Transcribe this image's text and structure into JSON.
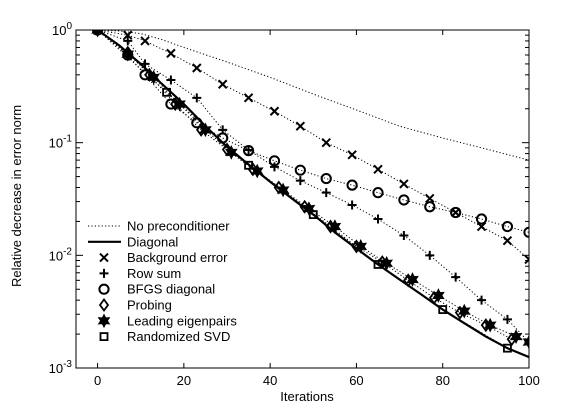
{
  "chart_data": {
    "type": "line",
    "title": "",
    "xlabel": "Iterations",
    "ylabel": "Relative decrease in error norm",
    "xlim": [
      -5,
      100
    ],
    "ylim": [
      0.001,
      1
    ],
    "yscale": "log",
    "grid": false,
    "legend_position": "bottom-left",
    "x_ticks": [
      0,
      20,
      40,
      60,
      80,
      100
    ],
    "x_tick_labels": [
      "0",
      "20",
      "40",
      "60",
      "80",
      "100"
    ],
    "y_ticks": [
      0.001,
      0.01,
      0.1,
      1
    ],
    "y_tick_labels": [
      {
        "base": "10",
        "exp": "-3"
      },
      {
        "base": "10",
        "exp": "-2"
      },
      {
        "base": "10",
        "exp": "-1"
      },
      {
        "base": "10",
        "exp": "0"
      }
    ],
    "series": [
      {
        "name": "No preconditioner",
        "style": "dotted",
        "marker": "none",
        "x": [
          0,
          5,
          10,
          15,
          20,
          30,
          40,
          50,
          60,
          70,
          80,
          90,
          100
        ],
        "y": [
          1.0,
          0.98,
          0.93,
          0.82,
          0.7,
          0.52,
          0.38,
          0.27,
          0.195,
          0.14,
          0.11,
          0.088,
          0.07
        ]
      },
      {
        "name": "Diagonal",
        "style": "solid-thick",
        "marker": "none",
        "x": [
          0,
          5,
          10,
          15,
          20,
          25,
          30,
          35,
          40,
          45,
          50,
          55,
          60,
          65,
          70,
          75,
          80,
          85,
          90,
          95,
          100
        ],
        "y": [
          1.0,
          0.73,
          0.5,
          0.33,
          0.22,
          0.14,
          0.092,
          0.064,
          0.045,
          0.032,
          0.023,
          0.016,
          0.0115,
          0.0083,
          0.0061,
          0.0045,
          0.0033,
          0.0025,
          0.0019,
          0.0015,
          0.00125
        ]
      },
      {
        "name": "Background error",
        "style": "dotted",
        "marker": "x",
        "x": [
          0,
          7,
          11,
          17,
          23,
          29,
          35,
          41,
          47,
          53,
          59,
          65,
          71,
          77,
          83,
          89,
          95,
          100
        ],
        "y": [
          1.0,
          0.9,
          0.8,
          0.62,
          0.46,
          0.33,
          0.25,
          0.19,
          0.14,
          0.1,
          0.078,
          0.058,
          0.043,
          0.032,
          0.024,
          0.018,
          0.0135,
          0.0092
        ]
      },
      {
        "name": "Row sum",
        "style": "dotted",
        "marker": "+",
        "x": [
          0,
          7,
          11,
          17,
          23,
          29,
          35,
          41,
          47,
          53,
          59,
          65,
          71,
          77,
          83,
          89,
          95,
          100
        ],
        "y": [
          1.0,
          0.8,
          0.5,
          0.36,
          0.25,
          0.13,
          0.086,
          0.061,
          0.046,
          0.036,
          0.028,
          0.021,
          0.015,
          0.01,
          0.0064,
          0.004,
          0.0027,
          0.0017
        ]
      },
      {
        "name": "BFGS diagonal",
        "style": "dotted",
        "marker": "o",
        "x": [
          0,
          7,
          11,
          17,
          23,
          29,
          35,
          41,
          47,
          53,
          59,
          65,
          71,
          77,
          83,
          89,
          95,
          100
        ],
        "y": [
          1.0,
          0.6,
          0.4,
          0.22,
          0.15,
          0.11,
          0.085,
          0.069,
          0.057,
          0.048,
          0.042,
          0.036,
          0.031,
          0.027,
          0.024,
          0.021,
          0.018,
          0.016
        ]
      },
      {
        "name": "Probing",
        "style": "dotted",
        "marker": "diamond",
        "x": [
          0,
          7,
          12,
          18,
          24,
          30,
          36,
          42,
          48,
          54,
          60,
          66,
          72,
          78,
          84,
          90,
          96
        ],
        "y": [
          1.0,
          0.63,
          0.4,
          0.22,
          0.13,
          0.087,
          0.058,
          0.04,
          0.027,
          0.018,
          0.012,
          0.0087,
          0.006,
          0.0042,
          0.0031,
          0.0024,
          0.0018
        ]
      },
      {
        "name": "Leading eigenpairs",
        "style": "dotted",
        "marker": "star",
        "x": [
          0,
          7,
          13,
          19,
          25,
          31,
          37,
          43,
          49,
          55,
          61,
          67,
          73,
          79,
          85,
          91,
          97,
          100
        ],
        "y": [
          1.0,
          0.61,
          0.38,
          0.22,
          0.13,
          0.082,
          0.056,
          0.038,
          0.026,
          0.018,
          0.012,
          0.0085,
          0.0061,
          0.0044,
          0.0032,
          0.0024,
          0.0019,
          0.0017
        ]
      },
      {
        "name": "Randomized SVD",
        "style": "dotted",
        "marker": "square",
        "x": [
          0,
          16,
          35,
          50,
          65,
          80,
          95
        ],
        "y": [
          1.0,
          0.28,
          0.063,
          0.023,
          0.0083,
          0.0033,
          0.0015
        ]
      }
    ]
  }
}
